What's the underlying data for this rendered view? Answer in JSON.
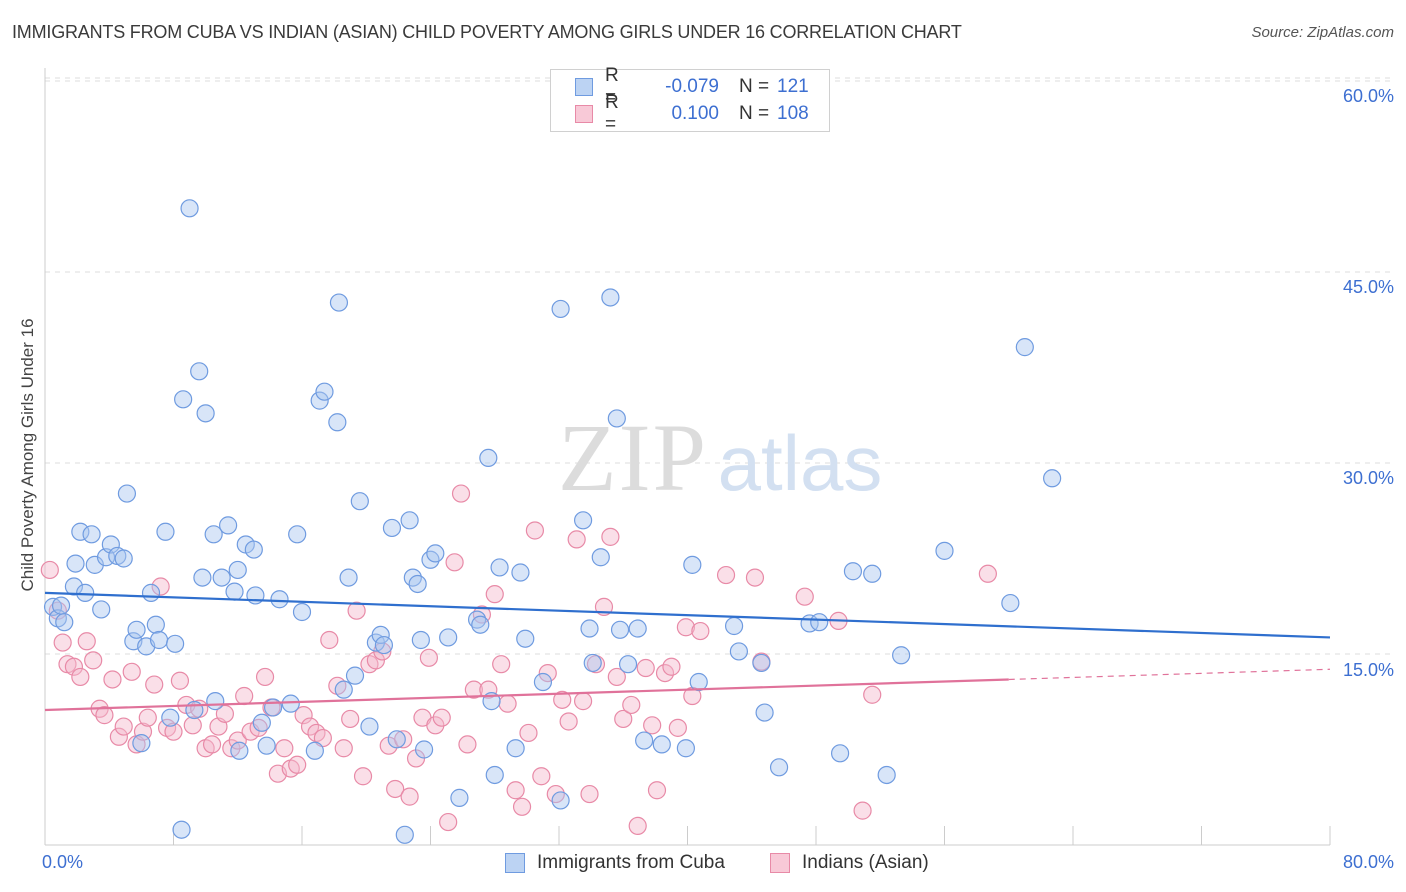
{
  "header": {
    "title": "IMMIGRANTS FROM CUBA VS INDIAN (ASIAN) CHILD POVERTY AMONG GIRLS UNDER 16 CORRELATION CHART",
    "source": "Source: ZipAtlas.com"
  },
  "watermark": {
    "zip": "ZIP",
    "atlas": "atlas"
  },
  "legend": {
    "rows": [
      {
        "r_label": "R =",
        "r_value": "-0.079",
        "n_label": "N =",
        "n_value": "121"
      },
      {
        "r_label": "R =",
        "r_value": "0.100",
        "n_label": "N =",
        "n_value": "108"
      }
    ]
  },
  "bottom_legend": {
    "cuba": "Immigrants from Cuba",
    "indian": "Indians (Asian)"
  },
  "axes": {
    "ylabel": "Child Poverty Among Girls Under 16",
    "x_min_label": "0.0%",
    "x_max_label": "80.0%",
    "y_tick_labels": [
      "15.0%",
      "30.0%",
      "45.0%",
      "60.0%"
    ]
  },
  "colors": {
    "cuba_fill": "#a9c6ef",
    "cuba_stroke": "#6f9be0",
    "cuba_line": "#2f6fce",
    "indian_fill": "#f5b9cb",
    "indian_stroke": "#e88aa7",
    "indian_line": "#e0729a",
    "tick_text": "#3d6fd1",
    "grid": "#dddddd"
  },
  "chart_data": {
    "type": "scatter",
    "title": "IMMIGRANTS FROM CUBA VS INDIAN (ASIAN) CHILD POVERTY AMONG GIRLS UNDER 16 CORRELATION CHART",
    "xlabel": "",
    "ylabel": "Child Poverty Among Girls Under 16",
    "xlim": [
      0,
      80
    ],
    "ylim": [
      0,
      62
    ],
    "y_ticks": [
      15,
      30,
      45,
      60
    ],
    "grid": true,
    "legend_position": "top-center",
    "series": [
      {
        "name": "Immigrants from Cuba",
        "R": -0.079,
        "N": 121,
        "trend": {
          "x": [
            0,
            80
          ],
          "y": [
            19.8,
            16.3
          ]
        },
        "points": [
          [
            0.5,
            18.7
          ],
          [
            0.8,
            17.8
          ],
          [
            1.0,
            18.8
          ],
          [
            1.2,
            17.5
          ],
          [
            1.8,
            20.3
          ],
          [
            1.9,
            22.1
          ],
          [
            2.2,
            24.6
          ],
          [
            2.5,
            19.8
          ],
          [
            2.9,
            24.4
          ],
          [
            3.1,
            22.0
          ],
          [
            3.5,
            18.5
          ],
          [
            3.8,
            22.6
          ],
          [
            4.1,
            23.6
          ],
          [
            4.5,
            22.7
          ],
          [
            4.9,
            22.5
          ],
          [
            5.1,
            27.6
          ],
          [
            5.5,
            16.0
          ],
          [
            5.7,
            16.9
          ],
          [
            6.0,
            8.0
          ],
          [
            6.3,
            15.6
          ],
          [
            6.6,
            19.8
          ],
          [
            6.9,
            17.3
          ],
          [
            7.1,
            16.1
          ],
          [
            7.5,
            24.6
          ],
          [
            7.8,
            10.0
          ],
          [
            8.1,
            15.8
          ],
          [
            8.5,
            1.2
          ],
          [
            8.6,
            35.0
          ],
          [
            9.0,
            50.0
          ],
          [
            9.3,
            10.6
          ],
          [
            9.6,
            37.2
          ],
          [
            9.8,
            21.0
          ],
          [
            10.0,
            33.9
          ],
          [
            10.5,
            24.4
          ],
          [
            10.6,
            11.3
          ],
          [
            11.0,
            21.0
          ],
          [
            11.4,
            25.1
          ],
          [
            11.8,
            19.9
          ],
          [
            12.0,
            21.6
          ],
          [
            12.1,
            7.4
          ],
          [
            12.5,
            23.6
          ],
          [
            13.0,
            23.2
          ],
          [
            13.1,
            19.6
          ],
          [
            13.5,
            9.6
          ],
          [
            13.8,
            7.8
          ],
          [
            14.2,
            10.8
          ],
          [
            14.6,
            19.3
          ],
          [
            15.3,
            11.1
          ],
          [
            15.7,
            24.4
          ],
          [
            16.0,
            18.3
          ],
          [
            16.8,
            7.4
          ],
          [
            17.1,
            34.9
          ],
          [
            17.4,
            35.6
          ],
          [
            18.2,
            33.2
          ],
          [
            18.3,
            42.6
          ],
          [
            18.6,
            12.2
          ],
          [
            18.9,
            21.0
          ],
          [
            19.3,
            13.3
          ],
          [
            19.6,
            27.0
          ],
          [
            20.2,
            9.3
          ],
          [
            20.6,
            15.9
          ],
          [
            20.9,
            16.5
          ],
          [
            21.1,
            15.7
          ],
          [
            21.6,
            24.9
          ],
          [
            21.9,
            8.3
          ],
          [
            22.4,
            0.8
          ],
          [
            22.7,
            25.5
          ],
          [
            22.9,
            21.0
          ],
          [
            23.2,
            20.5
          ],
          [
            23.4,
            16.1
          ],
          [
            23.6,
            7.5
          ],
          [
            24.0,
            22.4
          ],
          [
            24.3,
            22.9
          ],
          [
            25.1,
            16.3
          ],
          [
            25.8,
            3.7
          ],
          [
            26.9,
            17.7
          ],
          [
            27.1,
            17.3
          ],
          [
            27.6,
            30.4
          ],
          [
            27.8,
            11.3
          ],
          [
            28.0,
            5.5
          ],
          [
            28.3,
            21.8
          ],
          [
            29.3,
            7.6
          ],
          [
            29.6,
            21.4
          ],
          [
            29.9,
            16.2
          ],
          [
            31.0,
            12.8
          ],
          [
            32.1,
            42.1
          ],
          [
            32.1,
            3.5
          ],
          [
            33.5,
            25.5
          ],
          [
            33.9,
            17.0
          ],
          [
            34.1,
            14.3
          ],
          [
            34.6,
            22.6
          ],
          [
            35.2,
            43.0
          ],
          [
            35.6,
            33.5
          ],
          [
            35.8,
            16.9
          ],
          [
            36.3,
            14.2
          ],
          [
            36.9,
            17.0
          ],
          [
            37.3,
            8.2
          ],
          [
            38.4,
            7.9
          ],
          [
            39.9,
            7.6
          ],
          [
            40.3,
            22.0
          ],
          [
            40.7,
            12.8
          ],
          [
            42.9,
            17.2
          ],
          [
            43.2,
            15.2
          ],
          [
            44.6,
            14.3
          ],
          [
            44.8,
            10.4
          ],
          [
            45.7,
            6.1
          ],
          [
            47.6,
            17.4
          ],
          [
            48.2,
            17.5
          ],
          [
            49.5,
            7.2
          ],
          [
            50.3,
            21.5
          ],
          [
            51.5,
            21.3
          ],
          [
            52.4,
            5.5
          ],
          [
            53.3,
            14.9
          ],
          [
            56.0,
            23.1
          ],
          [
            60.1,
            19.0
          ],
          [
            61.0,
            39.1
          ],
          [
            62.7,
            28.8
          ]
        ]
      },
      {
        "name": "Indians (Asian)",
        "R": 0.1,
        "N": 108,
        "trend": {
          "x": [
            0,
            60
          ],
          "y": [
            10.6,
            13.0
          ]
        },
        "trend_dashed": {
          "x": [
            60,
            80
          ],
          "y": [
            13.0,
            13.8
          ]
        },
        "points": [
          [
            0.3,
            21.6
          ],
          [
            0.8,
            18.4
          ],
          [
            1.1,
            15.9
          ],
          [
            1.4,
            14.2
          ],
          [
            1.8,
            14.0
          ],
          [
            2.2,
            13.2
          ],
          [
            2.6,
            16.0
          ],
          [
            3.0,
            14.5
          ],
          [
            3.4,
            10.7
          ],
          [
            3.7,
            10.2
          ],
          [
            4.2,
            13.0
          ],
          [
            4.6,
            8.5
          ],
          [
            4.9,
            9.3
          ],
          [
            5.4,
            13.6
          ],
          [
            5.7,
            7.9
          ],
          [
            6.1,
            8.9
          ],
          [
            6.4,
            10.0
          ],
          [
            6.8,
            12.6
          ],
          [
            7.2,
            20.3
          ],
          [
            7.6,
            9.2
          ],
          [
            8.0,
            8.9
          ],
          [
            8.4,
            12.9
          ],
          [
            8.8,
            11.0
          ],
          [
            9.2,
            9.4
          ],
          [
            9.6,
            10.7
          ],
          [
            10.0,
            7.6
          ],
          [
            10.4,
            7.9
          ],
          [
            10.8,
            9.3
          ],
          [
            11.2,
            10.3
          ],
          [
            11.6,
            7.6
          ],
          [
            12.0,
            8.2
          ],
          [
            12.4,
            11.7
          ],
          [
            12.8,
            8.9
          ],
          [
            13.3,
            9.2
          ],
          [
            13.7,
            13.2
          ],
          [
            14.1,
            10.8
          ],
          [
            14.5,
            5.6
          ],
          [
            14.9,
            7.6
          ],
          [
            15.3,
            6.0
          ],
          [
            15.7,
            6.3
          ],
          [
            16.1,
            10.2
          ],
          [
            16.5,
            9.3
          ],
          [
            16.9,
            8.8
          ],
          [
            17.3,
            8.4
          ],
          [
            17.7,
            16.1
          ],
          [
            18.2,
            12.5
          ],
          [
            18.6,
            7.6
          ],
          [
            19.0,
            9.9
          ],
          [
            19.4,
            18.4
          ],
          [
            19.8,
            5.4
          ],
          [
            20.2,
            14.2
          ],
          [
            20.6,
            14.5
          ],
          [
            21.0,
            15.2
          ],
          [
            21.4,
            7.8
          ],
          [
            21.8,
            4.4
          ],
          [
            22.3,
            8.3
          ],
          [
            22.7,
            3.8
          ],
          [
            23.1,
            6.8
          ],
          [
            23.5,
            10.0
          ],
          [
            23.9,
            14.7
          ],
          [
            24.3,
            9.4
          ],
          [
            24.7,
            10.0
          ],
          [
            25.1,
            1.8
          ],
          [
            25.5,
            22.2
          ],
          [
            25.9,
            27.6
          ],
          [
            26.3,
            7.9
          ],
          [
            26.7,
            12.2
          ],
          [
            27.2,
            18.1
          ],
          [
            27.6,
            12.2
          ],
          [
            28.0,
            19.7
          ],
          [
            28.4,
            14.2
          ],
          [
            28.8,
            11.1
          ],
          [
            29.3,
            4.3
          ],
          [
            29.7,
            3.0
          ],
          [
            30.1,
            8.8
          ],
          [
            30.5,
            24.7
          ],
          [
            30.9,
            5.4
          ],
          [
            31.3,
            13.5
          ],
          [
            31.8,
            4.0
          ],
          [
            32.2,
            11.4
          ],
          [
            32.6,
            9.7
          ],
          [
            33.1,
            24.0
          ],
          [
            33.5,
            11.3
          ],
          [
            33.9,
            4.0
          ],
          [
            34.3,
            14.2
          ],
          [
            34.8,
            18.7
          ],
          [
            35.2,
            24.2
          ],
          [
            35.6,
            13.2
          ],
          [
            36.0,
            9.9
          ],
          [
            36.5,
            11.0
          ],
          [
            36.9,
            1.5
          ],
          [
            37.4,
            13.9
          ],
          [
            37.8,
            9.4
          ],
          [
            38.1,
            4.3
          ],
          [
            38.6,
            13.5
          ],
          [
            39.0,
            14.0
          ],
          [
            39.4,
            9.2
          ],
          [
            39.9,
            17.1
          ],
          [
            40.3,
            11.7
          ],
          [
            40.8,
            16.8
          ],
          [
            42.4,
            21.2
          ],
          [
            44.2,
            21.0
          ],
          [
            44.6,
            14.4
          ],
          [
            47.3,
            19.5
          ],
          [
            49.4,
            17.6
          ],
          [
            50.9,
            2.7
          ],
          [
            51.5,
            11.8
          ],
          [
            58.7,
            21.3
          ]
        ]
      }
    ]
  }
}
